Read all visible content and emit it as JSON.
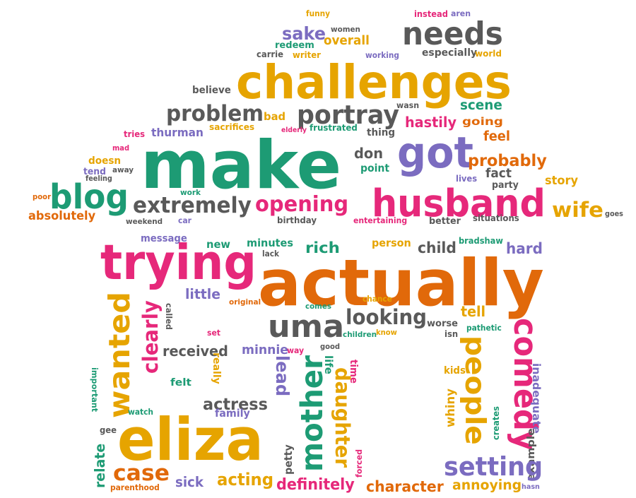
{
  "palette": {
    "orange": "#e1690a",
    "gold": "#e6a400",
    "pink": "#e6287a",
    "green": "#1d9b74",
    "gray": "#595959",
    "purple": "#7b6cc0"
  },
  "words": [
    {
      "text": "funny",
      "color": "gold"
    },
    {
      "text": "instead",
      "color": "pink"
    },
    {
      "text": "aren",
      "color": "purple"
    },
    {
      "text": "sake",
      "color": "purple"
    },
    {
      "text": "women",
      "color": "gray"
    },
    {
      "text": "needs",
      "color": "gray"
    },
    {
      "text": "redeem",
      "color": "green"
    },
    {
      "text": "overall",
      "color": "gold"
    },
    {
      "text": "carrie",
      "color": "gray"
    },
    {
      "text": "writer",
      "color": "gold"
    },
    {
      "text": "working",
      "color": "purple"
    },
    {
      "text": "especially",
      "color": "gray"
    },
    {
      "text": "world",
      "color": "gold"
    },
    {
      "text": "challenges",
      "color": "gold"
    },
    {
      "text": "believe",
      "color": "gray"
    },
    {
      "text": "wasn",
      "color": "gray"
    },
    {
      "text": "problem",
      "color": "gray"
    },
    {
      "text": "bad",
      "color": "gold"
    },
    {
      "text": "portray",
      "color": "gray"
    },
    {
      "text": "scene",
      "color": "green"
    },
    {
      "text": "hastily",
      "color": "pink"
    },
    {
      "text": "going",
      "color": "orange"
    },
    {
      "text": "tries",
      "color": "pink"
    },
    {
      "text": "thurman",
      "color": "purple"
    },
    {
      "text": "sacrifices",
      "color": "gold"
    },
    {
      "text": "elderly",
      "color": "pink"
    },
    {
      "text": "frustrated",
      "color": "green"
    },
    {
      "text": "thing",
      "color": "gray"
    },
    {
      "text": "feel",
      "color": "orange"
    },
    {
      "text": "mad",
      "color": "pink"
    },
    {
      "text": "make",
      "color": "green"
    },
    {
      "text": "don",
      "color": "gray"
    },
    {
      "text": "got",
      "color": "purple"
    },
    {
      "text": "probably",
      "color": "orange"
    },
    {
      "text": "doesn",
      "color": "gold"
    },
    {
      "text": "away",
      "color": "gray"
    },
    {
      "text": "point",
      "color": "green"
    },
    {
      "text": "tend",
      "color": "purple"
    },
    {
      "text": "fact",
      "color": "gray"
    },
    {
      "text": "lives",
      "color": "purple"
    },
    {
      "text": "party",
      "color": "gray"
    },
    {
      "text": "feeling",
      "color": "gray"
    },
    {
      "text": "story",
      "color": "gold"
    },
    {
      "text": "blog",
      "color": "green"
    },
    {
      "text": "husband",
      "color": "pink"
    },
    {
      "text": "poor",
      "color": "orange"
    },
    {
      "text": "work",
      "color": "green"
    },
    {
      "text": "extremely",
      "color": "gray"
    },
    {
      "text": "opening",
      "color": "pink"
    },
    {
      "text": "wife",
      "color": "gold"
    },
    {
      "text": "goes",
      "color": "gray"
    },
    {
      "text": "absolutely",
      "color": "orange"
    },
    {
      "text": "weekend",
      "color": "gray"
    },
    {
      "text": "car",
      "color": "purple"
    },
    {
      "text": "birthday",
      "color": "gray"
    },
    {
      "text": "entertaining",
      "color": "pink"
    },
    {
      "text": "better",
      "color": "gray"
    },
    {
      "text": "situations",
      "color": "gray"
    },
    {
      "text": "message",
      "color": "purple"
    },
    {
      "text": "new",
      "color": "green"
    },
    {
      "text": "minutes",
      "color": "green"
    },
    {
      "text": "lack",
      "color": "gray"
    },
    {
      "text": "person",
      "color": "gold"
    },
    {
      "text": "bradshaw",
      "color": "green"
    },
    {
      "text": "child",
      "color": "gray"
    },
    {
      "text": "hard",
      "color": "purple"
    },
    {
      "text": "trying",
      "color": "pink"
    },
    {
      "text": "rich",
      "color": "green"
    },
    {
      "text": "actually",
      "color": "orange"
    },
    {
      "text": "little",
      "color": "purple"
    },
    {
      "text": "original",
      "color": "orange"
    },
    {
      "text": "chance",
      "color": "gold"
    },
    {
      "text": "tell",
      "color": "gold"
    },
    {
      "text": "called",
      "color": "gray"
    },
    {
      "text": "comes",
      "color": "green"
    },
    {
      "text": "looking",
      "color": "gray"
    },
    {
      "text": "uma",
      "color": "gray"
    },
    {
      "text": "worse",
      "color": "gray"
    },
    {
      "text": "pathetic",
      "color": "green"
    },
    {
      "text": "children",
      "color": "green"
    },
    {
      "text": "know",
      "color": "gold"
    },
    {
      "text": "isn",
      "color": "gray"
    },
    {
      "text": "set",
      "color": "pink"
    },
    {
      "text": "received",
      "color": "gray"
    },
    {
      "text": "minnie",
      "color": "purple"
    },
    {
      "text": "way",
      "color": "pink"
    },
    {
      "text": "good",
      "color": "gray"
    },
    {
      "text": "wanted",
      "color": "gold"
    },
    {
      "text": "clearly",
      "color": "pink"
    },
    {
      "text": "comedy",
      "color": "pink"
    },
    {
      "text": "people",
      "color": "gold"
    },
    {
      "text": "lead",
      "color": "purple"
    },
    {
      "text": "life",
      "color": "green"
    },
    {
      "text": "time",
      "color": "pink"
    },
    {
      "text": "really",
      "color": "gold"
    },
    {
      "text": "important",
      "color": "green"
    },
    {
      "text": "kids",
      "color": "gold"
    },
    {
      "text": "felt",
      "color": "green"
    },
    {
      "text": "actress",
      "color": "gray"
    },
    {
      "text": "whiny",
      "color": "gold"
    },
    {
      "text": "mother",
      "color": "green"
    },
    {
      "text": "daughter",
      "color": "gold"
    },
    {
      "text": "inadequate",
      "color": "purple"
    },
    {
      "text": "family",
      "color": "purple"
    },
    {
      "text": "watch",
      "color": "green"
    },
    {
      "text": "example",
      "color": "gray"
    },
    {
      "text": "creates",
      "color": "green"
    },
    {
      "text": "gee",
      "color": "gray"
    },
    {
      "text": "eliza",
      "color": "gold"
    },
    {
      "text": "petty",
      "color": "gray"
    },
    {
      "text": "forced",
      "color": "pink"
    },
    {
      "text": "relate",
      "color": "green"
    },
    {
      "text": "case",
      "color": "orange"
    },
    {
      "text": "setting",
      "color": "purple"
    },
    {
      "text": "sick",
      "color": "purple"
    },
    {
      "text": "acting",
      "color": "gold"
    },
    {
      "text": "character",
      "color": "orange"
    },
    {
      "text": "annoying",
      "color": "gold"
    },
    {
      "text": "hasn",
      "color": "purple"
    },
    {
      "text": "parenthood",
      "color": "orange"
    },
    {
      "text": "definitely",
      "color": "pink"
    }
  ]
}
